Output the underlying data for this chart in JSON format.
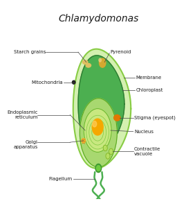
{
  "title": "Chlamydomonas",
  "background_color": "#ffffff",
  "cell_outer_color": "#d4f0b0",
  "cell_outer_edge": "#88cc44",
  "chloroplast_color": "#4caf50",
  "chloroplast_dark": "#2e7d32",
  "nucleus_pouch_color": "#a8d870",
  "nucleus_color": "#c8e880",
  "nucleolus_color": "#f5a800",
  "stigma_color": "#e07800",
  "starch_color": "#e0c060",
  "flagellum_color": "#4caf50",
  "pyrenoid_color": "#d4a830",
  "vacuole_color": "#b8e060",
  "label_fontsize": 5.0,
  "label_color": "#1a1a1a",
  "line_color": "#444444"
}
